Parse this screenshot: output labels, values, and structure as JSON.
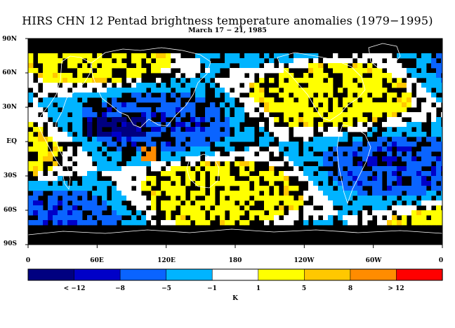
{
  "title": "HIRS CHN 12 Pentad brightness temperature anomalies (1979−1995)",
  "subtitle": "March 17 − 21, 1985",
  "lat_labels": [
    "90N",
    "60N",
    "30N",
    "EQ",
    "30S",
    "60S",
    "90S"
  ],
  "lon_labels": [
    "0",
    "60E",
    "120E",
    "180",
    "120W",
    "60W",
    "0"
  ],
  "colorbar": {
    "colors": [
      "#000080",
      "#0000c8",
      "#0a64ff",
      "#00b4ff",
      "#ffffff",
      "#ffff00",
      "#ffc800",
      "#ff8c00",
      "#ff0000"
    ],
    "labels": [
      "< −12",
      "−8",
      "−5",
      "−1",
      "1",
      "5",
      "8",
      "> 12"
    ],
    "unit": "K"
  },
  "map_colors": {
    "no_data": "#000000",
    "coast": "#ffffff"
  }
}
